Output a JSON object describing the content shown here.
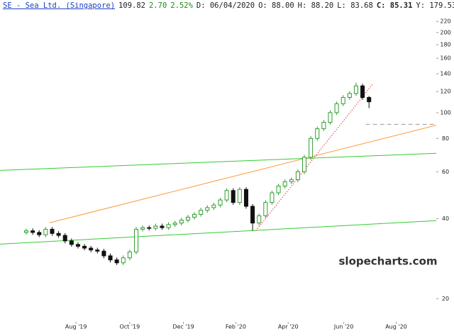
{
  "header": {
    "title": "SE - Sea Ltd. (Singapore)",
    "last": "109.82",
    "change": "2.70",
    "change_pct": "2.52%",
    "date": "D: 06/04/2020",
    "open": "O: 88.00",
    "high": "H: 88.20",
    "low": "L: 83.68",
    "close": "C: 85.31",
    "y": "Y: 179.53"
  },
  "chart_data": {
    "type": "candlestick",
    "log": true,
    "watermark": "slopecharts.com",
    "up_color": "#2e9e2e",
    "down_color": "#111111",
    "x": [
      0,
      1,
      2,
      3,
      4,
      5,
      6,
      7,
      8,
      9,
      10,
      11,
      12,
      13,
      14,
      15,
      16,
      17,
      18,
      19,
      20,
      21,
      22,
      23,
      24,
      25,
      26,
      27,
      28,
      29,
      30,
      31,
      32,
      33,
      34,
      35,
      36,
      37,
      38,
      39,
      40,
      41,
      42,
      43,
      44,
      45,
      46,
      47,
      48,
      49,
      50,
      51,
      52,
      53
    ],
    "open": [
      35.5,
      36.0,
      35.5,
      34.8,
      36.5,
      35.2,
      34.6,
      33.0,
      32.0,
      31.5,
      31.0,
      30.5,
      30.2,
      29.0,
      28.0,
      27.3,
      28.5,
      30.0,
      36.5,
      37.0,
      36.8,
      37.5,
      37.0,
      38.0,
      38.5,
      39.5,
      40.5,
      41.5,
      43.0,
      44.0,
      45.0,
      47.0,
      51.0,
      46.0,
      51.5,
      44.5,
      38.5,
      41.0,
      46.0,
      50.0,
      53.0,
      55.0,
      56.0,
      60.0,
      68.0,
      80.0,
      87.0,
      92.0,
      100.0,
      108.0,
      114.0,
      118.0,
      126.0,
      114.0
    ],
    "high": [
      36.7,
      36.8,
      36.2,
      37.2,
      37.2,
      35.9,
      35.3,
      33.7,
      32.6,
      32.1,
      31.6,
      31.1,
      30.8,
      29.6,
      28.6,
      29.1,
      30.6,
      37.2,
      37.7,
      37.7,
      38.3,
      38.3,
      38.8,
      39.3,
      40.3,
      41.3,
      42.3,
      43.9,
      44.9,
      45.9,
      47.9,
      52.0,
      52.0,
      52.5,
      52.5,
      45.4,
      41.8,
      46.9,
      51.0,
      54.1,
      56.1,
      57.1,
      61.2,
      69.4,
      81.6,
      88.7,
      93.8,
      102.0,
      110.2,
      116.3,
      120.4,
      129.5,
      128.5,
      115.5
    ],
    "low": [
      34.8,
      34.8,
      34.1,
      34.1,
      34.5,
      33.9,
      32.3,
      31.4,
      30.9,
      30.4,
      29.9,
      29.6,
      28.4,
      27.4,
      26.8,
      26.8,
      27.9,
      29.4,
      35.8,
      36.1,
      36.1,
      36.3,
      36.3,
      37.2,
      37.7,
      38.7,
      39.7,
      40.7,
      42.1,
      43.1,
      44.1,
      46.1,
      45.1,
      45.1,
      43.6,
      36.0,
      37.7,
      40.2,
      45.1,
      49.0,
      51.9,
      53.9,
      54.9,
      58.8,
      66.6,
      78.4,
      85.3,
      90.2,
      98.0,
      105.8,
      111.7,
      115.6,
      111.7,
      104.0
    ],
    "close": [
      36.0,
      35.5,
      34.8,
      36.5,
      35.2,
      34.6,
      33.0,
      32.0,
      31.5,
      31.0,
      30.5,
      30.2,
      29.0,
      28.0,
      27.3,
      28.5,
      30.0,
      36.5,
      37.0,
      36.8,
      37.5,
      37.0,
      38.0,
      38.5,
      39.5,
      40.5,
      41.5,
      43.0,
      44.0,
      45.0,
      47.0,
      51.0,
      46.0,
      51.5,
      44.5,
      38.5,
      41.0,
      46.0,
      50.0,
      53.0,
      55.0,
      56.0,
      60.0,
      68.0,
      80.0,
      87.0,
      92.0,
      100.0,
      108.0,
      114.0,
      118.0,
      126.0,
      114.0,
      109.82
    ],
    "xlim": [
      -4.06,
      63.4
    ],
    "xticks": [
      {
        "value": 7.7,
        "label": "Aug '19"
      },
      {
        "value": 16.0,
        "label": "Oct '19"
      },
      {
        "value": 24.3,
        "label": "Dec '19"
      },
      {
        "value": 32.4,
        "label": "Feb '20"
      },
      {
        "value": 40.5,
        "label": "Apr '20"
      },
      {
        "value": 49.1,
        "label": "Jun '20"
      },
      {
        "value": 57.2,
        "label": "Aug '20"
      }
    ],
    "ylim": [
      16.8,
      243
    ],
    "yticks": [
      20,
      40,
      60,
      80,
      100,
      120,
      140,
      160,
      180,
      200,
      220
    ],
    "trendlines": [
      {
        "color": "#33cc33",
        "style": "solid",
        "x": [
          -4.06,
          66.2
        ],
        "y": [
          60.7,
          70.8
        ]
      },
      {
        "color": "#33cc33",
        "style": "solid",
        "x": [
          -4.06,
          63.4
        ],
        "y": [
          32.1,
          39.3
        ]
      },
      {
        "color": "#ff9933",
        "style": "solid",
        "x": [
          3.6,
          66.2
        ],
        "y": [
          38.6,
          93.3
        ]
      },
      {
        "color": "#ee3333",
        "style": "dotted",
        "x": [
          35.5,
          53.6
        ],
        "y": [
          36.0,
          128.3
        ]
      },
      {
        "color": "#999999",
        "style": "dashed",
        "x": [
          52.5,
          63.4
        ],
        "y": [
          90.4,
          90.4
        ]
      }
    ]
  }
}
